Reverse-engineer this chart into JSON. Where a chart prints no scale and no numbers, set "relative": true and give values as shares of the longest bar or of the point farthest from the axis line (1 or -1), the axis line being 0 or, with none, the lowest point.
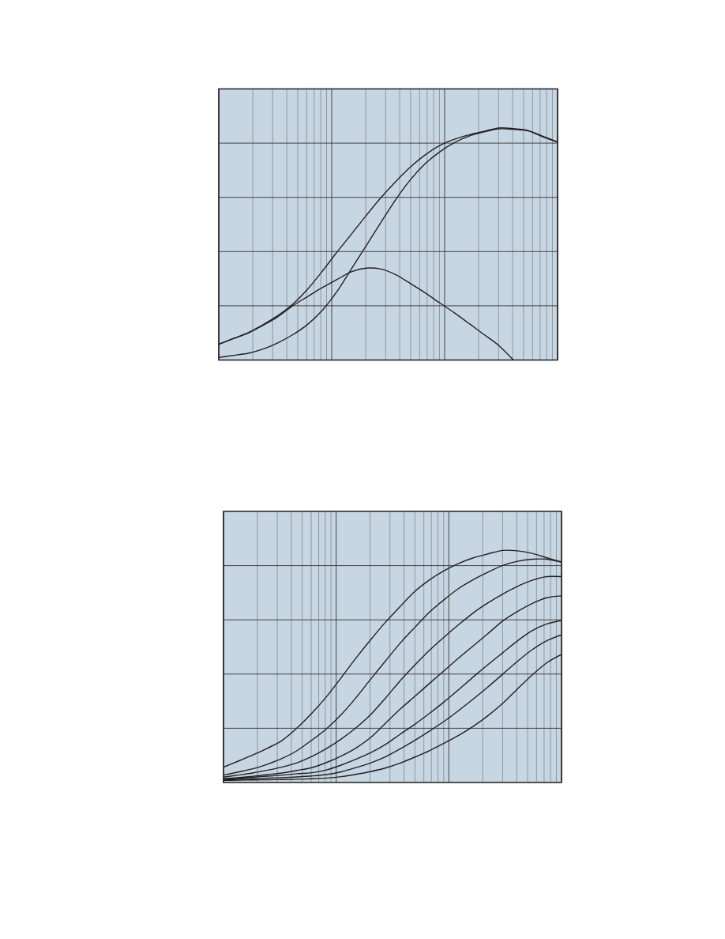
{
  "chart_data": [
    {
      "type": "line",
      "relative": true,
      "grid": true,
      "log": "x",
      "categories": [
        null,
        null,
        null,
        null,
        null,
        null,
        null,
        null,
        null,
        null,
        null,
        null,
        null,
        null,
        null,
        null,
        null,
        null,
        null,
        null,
        null,
        null,
        null,
        null
      ],
      "series": [
        {
          "color": "#231f20",
          "values": [
            0.068,
            0.093,
            0.118,
            0.152,
            0.191,
            0.239,
            0.303,
            0.38,
            0.463,
            0.542,
            0.622,
            0.699,
            0.768,
            0.831,
            0.883,
            0.924,
            0.951,
            0.97,
            0.985,
            1.0,
            0.997,
            0.989,
            0.964,
            0.94
          ]
        },
        {
          "color": "#231f20",
          "values": [
            0.011,
            0.02,
            0.029,
            0.047,
            0.074,
            0.108,
            0.152,
            0.212,
            0.293,
            0.392,
            0.492,
            0.592,
            0.69,
            0.776,
            0.845,
            0.897,
            0.937,
            0.965,
            0.983,
            0.996,
            0.994,
            0.987,
            0.962,
            0.939
          ]
        },
        {
          "color": "#231f20",
          "values": [
            0.068,
            0.092,
            0.116,
            0.149,
            0.186,
            0.233,
            0.272,
            0.311,
            0.346,
            0.38,
            0.396,
            0.392,
            0.368,
            0.33,
            0.29,
            0.246,
            0.203,
            0.157,
            0.11,
            0.063,
            0,
            null,
            null,
            null
          ]
        }
      ]
    },
    {
      "type": "line",
      "relative": true,
      "grid": true,
      "log": "x",
      "categories": [
        null,
        null,
        null,
        null,
        null,
        null,
        null,
        null,
        null,
        null,
        null,
        null,
        null,
        null,
        null,
        null,
        null,
        null,
        null,
        null,
        null,
        null,
        null,
        null
      ],
      "series": [
        {
          "color": "#231f20",
          "values": [
            0.066,
            0.092,
            0.119,
            0.148,
            0.182,
            0.235,
            0.298,
            0.369,
            0.451,
            0.535,
            0.614,
            0.689,
            0.757,
            0.822,
            0.872,
            0.912,
            0.944,
            0.968,
            0.985,
            1.0,
            0.998,
            0.987,
            0.968,
            0.95
          ]
        },
        {
          "color": "#231f20",
          "values": [
            0.032,
            0.045,
            0.059,
            0.079,
            0.104,
            0.137,
            0.182,
            0.231,
            0.292,
            0.364,
            0.444,
            0.522,
            0.599,
            0.667,
            0.733,
            0.787,
            0.836,
            0.874,
            0.906,
            0.935,
            0.953,
            0.962,
            0.962,
            0.949
          ]
        },
        {
          "color": "#231f20",
          "values": [
            0.023,
            0.032,
            0.041,
            0.053,
            0.067,
            0.085,
            0.112,
            0.146,
            0.187,
            0.235,
            0.292,
            0.362,
            0.437,
            0.505,
            0.569,
            0.626,
            0.68,
            0.731,
            0.774,
            0.812,
            0.845,
            0.871,
            0.887,
            0.887
          ]
        },
        {
          "color": "#231f20",
          "values": [
            0.016,
            0.021,
            0.027,
            0.034,
            0.041,
            0.052,
            0.064,
            0.086,
            0.114,
            0.148,
            0.193,
            0.254,
            0.315,
            0.37,
            0.426,
            0.481,
            0.536,
            0.589,
            0.642,
            0.696,
            0.737,
            0.771,
            0.796,
            0.804
          ]
        },
        {
          "color": "#231f20",
          "values": [
            0.014,
            0.018,
            0.023,
            0.027,
            0.032,
            0.038,
            0.042,
            0.054,
            0.075,
            0.1,
            0.128,
            0.163,
            0.207,
            0.25,
            0.297,
            0.347,
            0.4,
            0.455,
            0.508,
            0.559,
            0.61,
            0.654,
            0.683,
            0.698
          ]
        },
        {
          "color": "#231f20",
          "values": [
            0.011,
            0.014,
            0.016,
            0.019,
            0.021,
            0.024,
            0.028,
            0.034,
            0.046,
            0.064,
            0.084,
            0.11,
            0.144,
            0.181,
            0.221,
            0.263,
            0.31,
            0.36,
            0.412,
            0.467,
            0.522,
            0.572,
            0.611,
            0.636
          ]
        },
        {
          "color": "#231f20",
          "values": [
            0.009,
            0.01,
            0.011,
            0.012,
            0.013,
            0.014,
            0.016,
            0.019,
            0.025,
            0.035,
            0.047,
            0.062,
            0.083,
            0.109,
            0.137,
            0.169,
            0.203,
            0.242,
            0.288,
            0.341,
            0.403,
            0.463,
            0.516,
            0.552
          ]
        }
      ]
    }
  ]
}
